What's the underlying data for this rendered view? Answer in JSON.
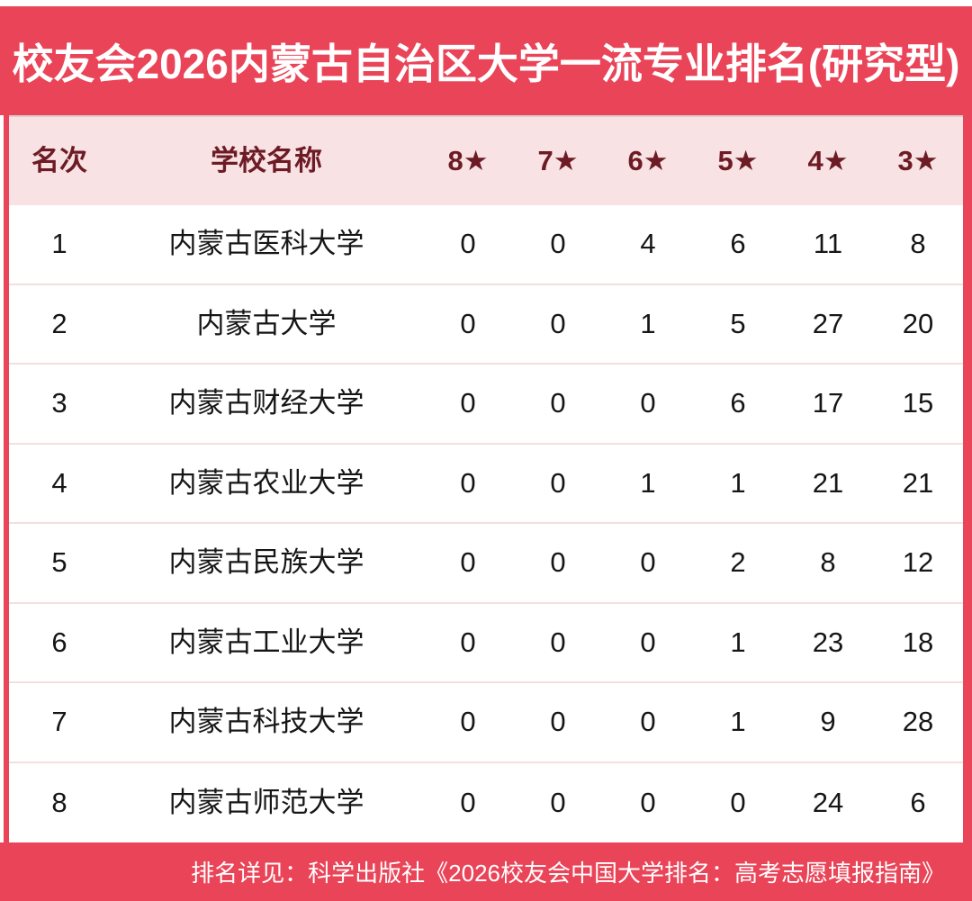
{
  "colors": {
    "red": "#EA4458",
    "header_bg": "#F8E2E4",
    "header_text": "#6D1B24",
    "body_text": "#161616",
    "row_divider": "#F2E0E1",
    "title_text": "#FFFFFF",
    "footer_text": "#FFFFFF"
  },
  "chart_data": {
    "type": "table",
    "title": "校友会2026内蒙古自治区大学一流专业排名(研究型)",
    "columns": [
      "名次",
      "学校名称",
      "8★",
      "7★",
      "6★",
      "5★",
      "4★",
      "3★"
    ],
    "rows": [
      {
        "rank": "1",
        "school": "内蒙古医科大学",
        "stars": [
          "0",
          "0",
          "4",
          "6",
          "11",
          "8"
        ]
      },
      {
        "rank": "2",
        "school": "内蒙古大学",
        "stars": [
          "0",
          "0",
          "1",
          "5",
          "27",
          "20"
        ]
      },
      {
        "rank": "3",
        "school": "内蒙古财经大学",
        "stars": [
          "0",
          "0",
          "0",
          "6",
          "17",
          "15"
        ]
      },
      {
        "rank": "4",
        "school": "内蒙古农业大学",
        "stars": [
          "0",
          "0",
          "1",
          "1",
          "21",
          "21"
        ]
      },
      {
        "rank": "5",
        "school": "内蒙古民族大学",
        "stars": [
          "0",
          "0",
          "0",
          "2",
          "8",
          "12"
        ]
      },
      {
        "rank": "6",
        "school": "内蒙古工业大学",
        "stars": [
          "0",
          "0",
          "0",
          "1",
          "23",
          "18"
        ]
      },
      {
        "rank": "7",
        "school": "内蒙古科技大学",
        "stars": [
          "0",
          "0",
          "0",
          "1",
          "9",
          "28"
        ]
      },
      {
        "rank": "8",
        "school": "内蒙古师范大学",
        "stars": [
          "0",
          "0",
          "0",
          "0",
          "24",
          "6"
        ]
      }
    ],
    "footnote": "排名详见：科学出版社《2026校友会中国大学排名：高考志愿填报指南》"
  }
}
